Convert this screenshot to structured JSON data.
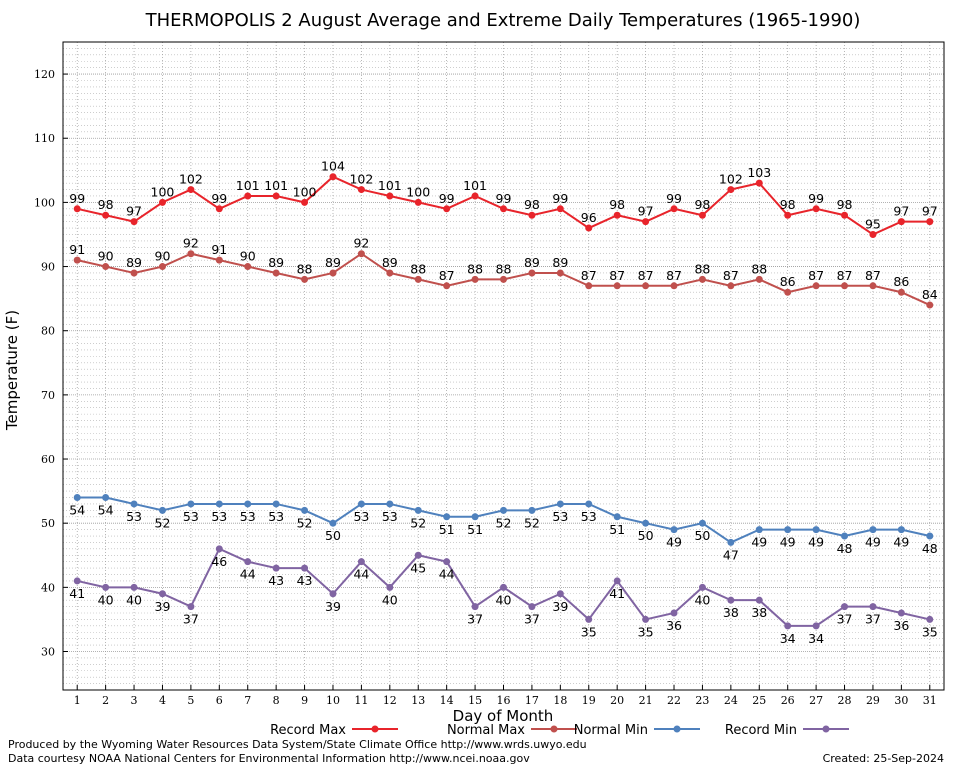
{
  "chart_data": {
    "type": "line",
    "title": "THERMOPOLIS 2 August Average and Extreme Daily Temperatures (1965-1990)",
    "xlabel": "Day of Month",
    "ylabel": "Temperature (F)",
    "ylim": [
      24,
      125
    ],
    "xlim": [
      0.5,
      31.5
    ],
    "yticks": [
      30,
      40,
      50,
      60,
      70,
      80,
      90,
      100,
      110,
      120
    ],
    "x": [
      1,
      2,
      3,
      4,
      5,
      6,
      7,
      8,
      9,
      10,
      11,
      12,
      13,
      14,
      15,
      16,
      17,
      18,
      19,
      20,
      21,
      22,
      23,
      24,
      25,
      26,
      27,
      28,
      29,
      30,
      31
    ],
    "grid": true,
    "legend_position": "bottom",
    "series": [
      {
        "name": "Record Max",
        "color": "#e8242b",
        "label_pos": "above",
        "values": [
          99,
          98,
          97,
          100,
          102,
          99,
          101,
          101,
          100,
          104,
          102,
          101,
          100,
          99,
          101,
          99,
          98,
          99,
          96,
          98,
          97,
          99,
          98,
          102,
          103,
          98,
          99,
          98,
          95,
          97,
          97
        ]
      },
      {
        "name": "Normal Max",
        "color": "#c0504d",
        "label_pos": "above",
        "values": [
          91,
          90,
          89,
          90,
          92,
          91,
          90,
          89,
          88,
          89,
          92,
          89,
          88,
          87,
          88,
          88,
          89,
          89,
          87,
          87,
          87,
          87,
          88,
          87,
          88,
          86,
          87,
          87,
          87,
          86,
          84
        ]
      },
      {
        "name": "Normal Min",
        "color": "#4f81bd",
        "label_pos": "below",
        "values": [
          54,
          54,
          53,
          52,
          53,
          53,
          53,
          53,
          52,
          50,
          53,
          53,
          52,
          51,
          51,
          52,
          52,
          53,
          53,
          51,
          50,
          49,
          50,
          47,
          49,
          49,
          49,
          48,
          49,
          49,
          48
        ]
      },
      {
        "name": "Record Min",
        "color": "#8064a2",
        "label_pos": "below",
        "values": [
          41,
          40,
          40,
          39,
          37,
          46,
          44,
          43,
          43,
          39,
          44,
          40,
          45,
          44,
          37,
          40,
          37,
          39,
          35,
          41,
          35,
          36,
          40,
          38,
          38,
          34,
          34,
          37,
          37,
          36,
          35
        ]
      }
    ]
  },
  "footer": {
    "produced_by": "Produced by the Wyoming Water Resources Data System/State Climate Office http://www.wrds.uwyo.edu",
    "courtesy": "Data courtesy NOAA National Centers for Environmental Information http://www.ncei.noaa.gov",
    "created": "Created:  25-Sep-2024"
  }
}
